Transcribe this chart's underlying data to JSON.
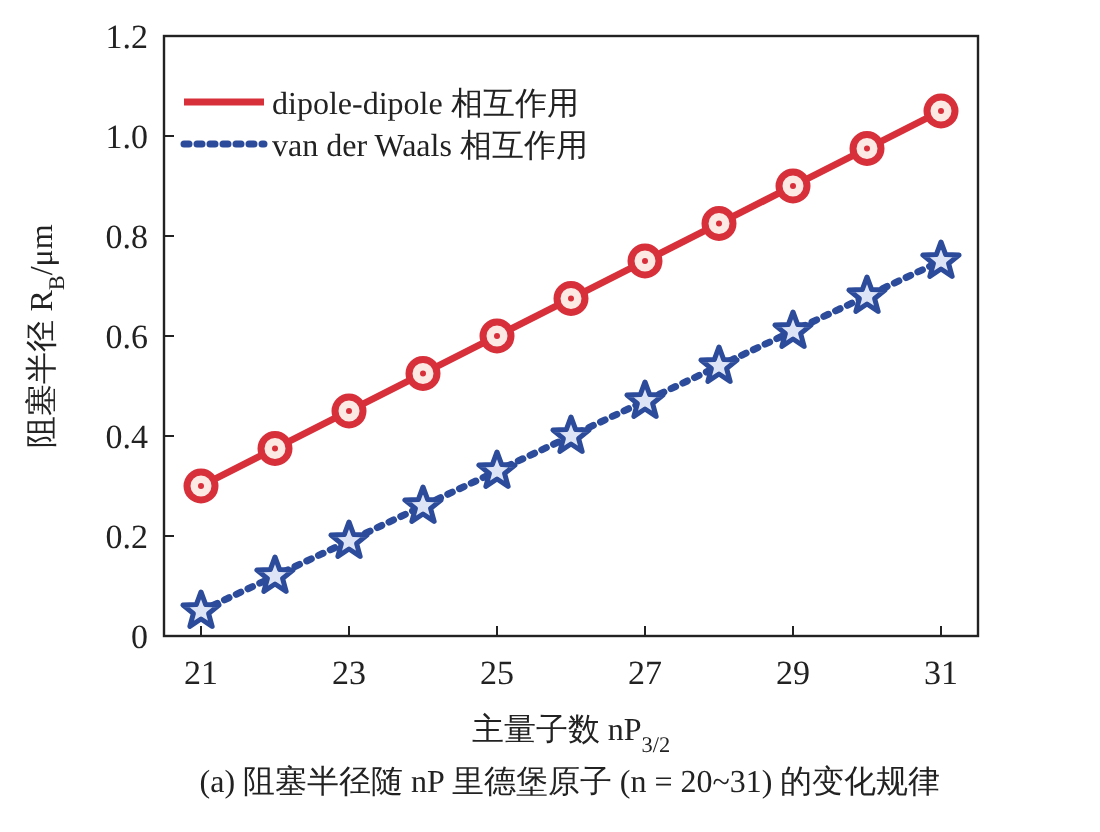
{
  "chart_data": {
    "type": "line",
    "ylabel": "阻塞半径 R$_{B}$/μm",
    "xlabel": "主量子数 nP$_{3/2}$",
    "annotations": [
      "(a) 阻塞半径随 nP 里德堡原子 (n = 20~31) 的变化规律"
    ],
    "x": [
      21,
      22,
      23,
      24,
      25,
      26,
      27,
      28,
      29,
      30,
      31
    ],
    "xlim": [
      20.5,
      31.5
    ],
    "xticks": [
      21,
      23,
      25,
      27,
      29,
      31
    ],
    "ylim": [
      0,
      1.2
    ],
    "yticks": [
      0,
      {
        "value": 0.2,
        "label": "0.2"
      },
      {
        "value": 0.4,
        "label": "0.4"
      },
      {
        "value": 0.6,
        "label": "0.6"
      },
      {
        "value": 0.8,
        "label": "0.8"
      },
      {
        "value": 1.0,
        "label": "1.0"
      },
      {
        "value": 1.2,
        "label": "1.2"
      }
    ],
    "legend": "top left",
    "grid": false,
    "series": [
      {
        "name": "dipole-dipole 相互作用",
        "color": "#d7303a",
        "marker": "circle",
        "line_style": "solid",
        "values": [
          0.3,
          0.375,
          0.45,
          0.525,
          0.6,
          0.675,
          0.75,
          0.825,
          0.9,
          0.975,
          1.05
        ]
      },
      {
        "name": "van der Waals 相互作用",
        "color": "#2c4b9a",
        "marker": "star",
        "line_style": "dotted",
        "values": [
          0.05,
          0.12,
          0.19,
          0.26,
          0.33,
          0.4,
          0.47,
          0.54,
          0.61,
          0.68,
          0.75
        ]
      }
    ]
  }
}
